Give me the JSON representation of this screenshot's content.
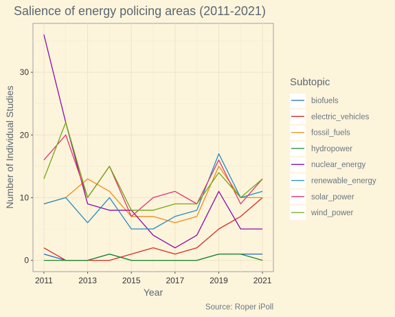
{
  "chart_data": {
    "type": "line",
    "title": "Salience of energy policing areas (2011-2021)",
    "xlabel": "Year",
    "ylabel": "Number of Individual Studies",
    "caption": "Source: Roper iPoll",
    "legend_title": "Subtopic",
    "legend_position": "right",
    "grid": true,
    "xlim": [
      2010.5,
      2021.5
    ],
    "ylim": [
      -1.8,
      37.8
    ],
    "x_ticks": [
      "2011",
      "2013",
      "2015",
      "2017",
      "2019",
      "2021"
    ],
    "y_ticks": [
      "0",
      "10",
      "20",
      "30"
    ],
    "x": [
      2011,
      2012,
      2013,
      2014,
      2015,
      2016,
      2017,
      2018,
      2019,
      2020,
      2021
    ],
    "series": [
      {
        "name": "biofuels",
        "color": "#2166c4",
        "values": [
          1,
          0,
          0,
          1,
          0,
          0,
          0,
          0,
          1,
          1,
          1
        ]
      },
      {
        "name": "electric_vehicles",
        "color": "#d62b1e",
        "values": [
          2,
          0,
          0,
          0,
          1,
          2,
          1,
          2,
          5,
          7,
          10
        ]
      },
      {
        "name": "fossil_fuels",
        "color": "#f08c14",
        "values": [
          9,
          10,
          13,
          11,
          7,
          7,
          6,
          7,
          15,
          10,
          10
        ]
      },
      {
        "name": "hydropower",
        "color": "#1a8a2a",
        "values": [
          0,
          0,
          0,
          1,
          0,
          0,
          0,
          0,
          1,
          1,
          0
        ]
      },
      {
        "name": "nuclear_energy",
        "color": "#8a0aa6",
        "values": [
          36,
          22,
          9,
          8,
          8,
          4,
          2,
          4,
          11,
          5,
          5
        ]
      },
      {
        "name": "renewable_energy",
        "color": "#1f8ec4",
        "values": [
          9,
          10,
          6,
          10,
          5,
          5,
          7,
          8,
          17,
          10,
          11
        ]
      },
      {
        "name": "solar_power",
        "color": "#e0326e",
        "values": [
          16,
          20,
          10,
          15,
          7,
          10,
          11,
          9,
          16,
          9,
          13
        ]
      },
      {
        "name": "wind_power",
        "color": "#6fa80e",
        "values": [
          13,
          22,
          10,
          15,
          8,
          8,
          9,
          9,
          14,
          10,
          13
        ]
      }
    ]
  }
}
